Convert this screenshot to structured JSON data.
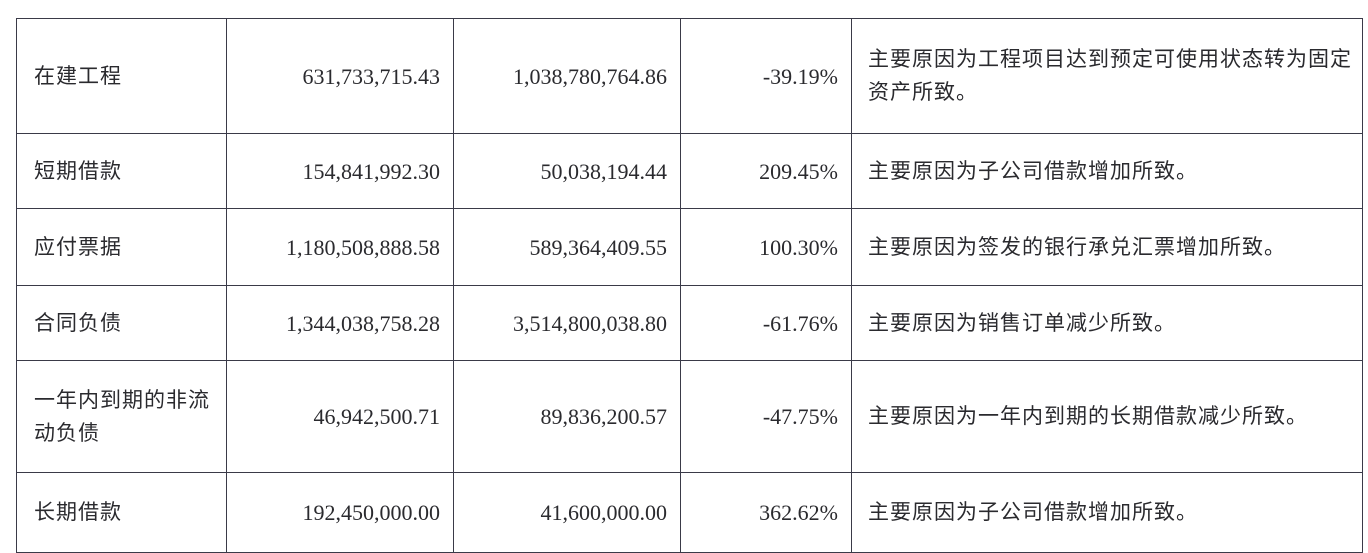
{
  "table": {
    "rows": [
      {
        "item": "在建工程",
        "current": "631,733,715.43",
        "previous": "1,038,780,764.86",
        "change": "-39.19%",
        "reason": "主要原因为工程项目达到预定可使用状态转为固定资产所致。"
      },
      {
        "item": "短期借款",
        "current": "154,841,992.30",
        "previous": "50,038,194.44",
        "change": "209.45%",
        "reason": "主要原因为子公司借款增加所致。"
      },
      {
        "item": "应付票据",
        "current": "1,180,508,888.58",
        "previous": "589,364,409.55",
        "change": "100.30%",
        "reason": "主要原因为签发的银行承兑汇票增加所致。"
      },
      {
        "item": "合同负债",
        "current": "1,344,038,758.28",
        "previous": "3,514,800,038.80",
        "change": "-61.76%",
        "reason": "主要原因为销售订单减少所致。"
      },
      {
        "item": "一年内到期的非流动负债",
        "current": "46,942,500.71",
        "previous": "89,836,200.57",
        "change": "-47.75%",
        "reason": "主要原因为一年内到期的长期借款减少所致。"
      },
      {
        "item": "长期借款",
        "current": "192,450,000.00",
        "previous": "41,600,000.00",
        "change": "362.62%",
        "reason": "主要原因为子公司借款增加所致。"
      }
    ]
  }
}
